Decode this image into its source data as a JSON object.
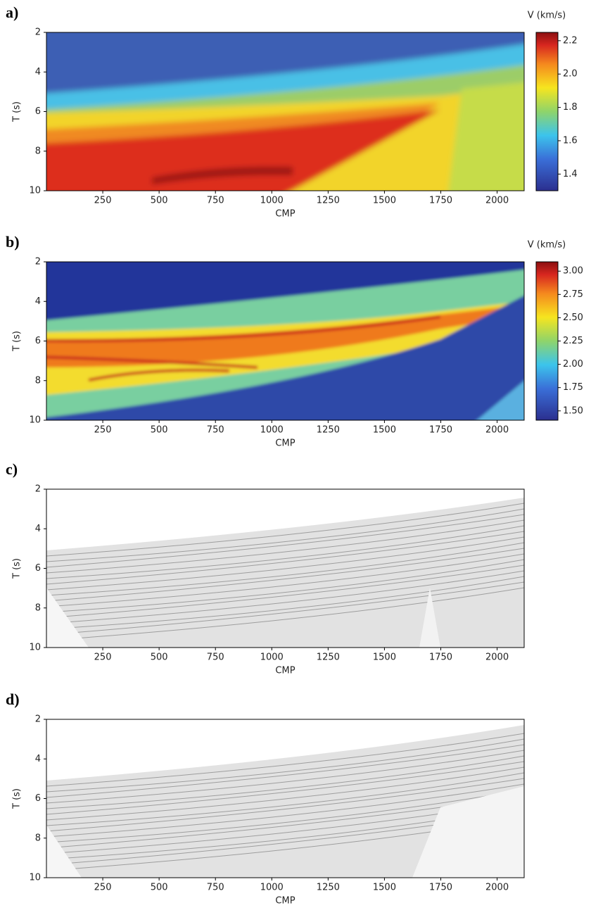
{
  "chart_data": [
    {
      "type": "heatmap",
      "panel_label": "a)",
      "xlabel": "CMP",
      "ylabel": "T (s)",
      "xlim": [
        0,
        2120
      ],
      "ylim": [
        10,
        2
      ],
      "xticks": [
        250,
        500,
        750,
        1000,
        1250,
        1500,
        1750,
        2000
      ],
      "yticks": [
        2,
        4,
        6,
        8,
        10
      ],
      "colorbar": {
        "label": "V (km/s)",
        "clim": [
          1.3,
          2.25
        ],
        "colormap": "jet",
        "ticks": [
          1.4,
          1.6,
          1.8,
          {
            "value": 2,
            "label": "2.0"
          },
          2.2
        ]
      }
    },
    {
      "type": "heatmap",
      "panel_label": "b)",
      "xlabel": "CMP",
      "ylabel": "T (s)",
      "xlim": [
        0,
        2120
      ],
      "ylim": [
        10,
        2
      ],
      "xticks": [
        250,
        500,
        750,
        1000,
        1250,
        1500,
        1750,
        2000
      ],
      "yticks": [
        2,
        4,
        6,
        8,
        10
      ],
      "colorbar": {
        "label": "V (km/s)",
        "clim": [
          1.4,
          3.1
        ],
        "colormap": "jet",
        "ticks": [
          {
            "value": 1.5,
            "label": "1.50"
          },
          1.75,
          {
            "value": 2,
            "label": "2.00"
          },
          2.25,
          {
            "value": 2.5,
            "label": "2.50"
          },
          2.75,
          {
            "value": 3,
            "label": "3.00"
          }
        ]
      }
    },
    {
      "type": "heatmap",
      "panel_label": "c)",
      "xlabel": "CMP",
      "ylabel": "T (s)",
      "xlim": [
        0,
        2120
      ],
      "ylim": [
        10,
        2
      ],
      "xticks": [
        250,
        500,
        750,
        1000,
        1250,
        1500,
        1750,
        2000
      ],
      "yticks": [
        2,
        4,
        6,
        8,
        10
      ]
    },
    {
      "type": "heatmap",
      "panel_label": "d)",
      "xlabel": "CMP",
      "ylabel": "T (s)",
      "xlim": [
        0,
        2120
      ],
      "ylim": [
        10,
        2
      ],
      "xticks": [
        250,
        500,
        750,
        1000,
        1250,
        1500,
        1750,
        2000
      ],
      "yticks": [
        2,
        4,
        6,
        8,
        10
      ]
    }
  ]
}
